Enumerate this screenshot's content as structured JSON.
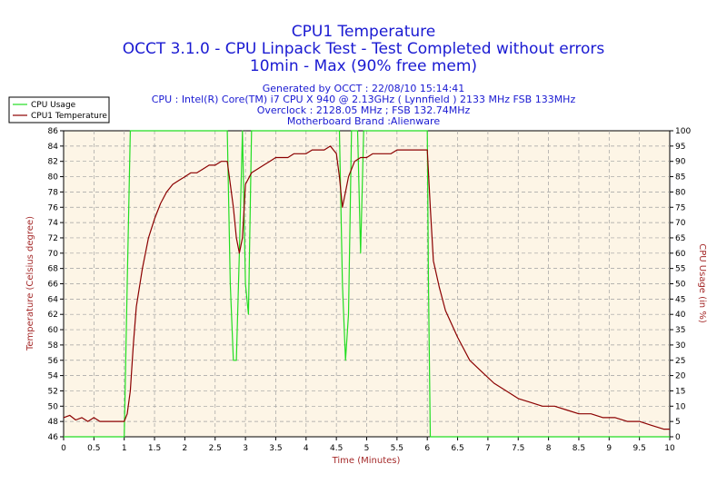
{
  "chart_data": {
    "type": "line",
    "title": "CPU1 Temperature",
    "subtitle_lines": [
      "OCCT 3.1.0 - CPU Linpack Test - Test Completed without errors",
      "10min - Max (90% free mem)"
    ],
    "info_lines": [
      "Generated by OCCT : 22/08/10 15:14:41",
      "CPU : Intel(R) Core(TM) i7 CPU X 940 @ 2.13GHz ( Lynnfield ) 2133 MHz FSB 133MHz",
      "Overclock : 2128.05 MHz ; FSB 132.74MHz",
      "Motherboard Brand :Alienware"
    ],
    "xlabel": "Time (Minutes)",
    "ylabel_left": "Temperature (Celsius degree)",
    "ylabel_right": "CPU Usage (in %)",
    "xlim": [
      0,
      10
    ],
    "ylim_left": [
      46,
      86
    ],
    "ylim_right": [
      0,
      100
    ],
    "x_ticks": [
      "0",
      "0.5",
      "1",
      "1.5",
      "2",
      "2.5",
      "3",
      "3.5",
      "4",
      "4.5",
      "5",
      "5.5",
      "6",
      "6.5",
      "7",
      "7.5",
      "8",
      "8.5",
      "9",
      "9.5",
      "10"
    ],
    "y_ticks_left": [
      "46",
      "48",
      "50",
      "52",
      "54",
      "56",
      "58",
      "60",
      "62",
      "64",
      "66",
      "68",
      "70",
      "72",
      "74",
      "76",
      "78",
      "80",
      "82",
      "84",
      "86"
    ],
    "y_ticks_right": [
      "0",
      "5",
      "10",
      "15",
      "20",
      "25",
      "30",
      "35",
      "40",
      "45",
      "50",
      "55",
      "60",
      "65",
      "70",
      "75",
      "80",
      "85",
      "90",
      "95",
      "100"
    ],
    "grid": true,
    "legend_position": "top-left",
    "colors": {
      "plot_background": "#fdf5e6",
      "grid": "#a0a0a0",
      "cpu_usage": "#22dd22",
      "temperature": "#8b0000",
      "title": "#1a1ad2",
      "axis_label": "#a52a2a"
    },
    "series": [
      {
        "name": "CPU Usage",
        "axis": "right",
        "x": [
          0,
          1.0,
          1.05,
          1.1,
          1.15,
          2.7,
          2.75,
          2.8,
          2.85,
          2.9,
          2.95,
          3.0,
          3.05,
          3.1,
          4.55,
          4.6,
          4.65,
          4.7,
          4.75,
          4.85,
          4.9,
          4.95,
          5.0,
          6.0,
          6.02,
          6.05,
          10
        ],
        "y": [
          0,
          0,
          50,
          100,
          100,
          100,
          50,
          25,
          25,
          60,
          100,
          50,
          40,
          100,
          100,
          50,
          25,
          40,
          100,
          100,
          60,
          100,
          100,
          100,
          50,
          0,
          0
        ]
      },
      {
        "name": "CPU1 Temperature",
        "axis": "left",
        "x": [
          0,
          0.1,
          0.2,
          0.3,
          0.4,
          0.5,
          0.6,
          0.7,
          0.8,
          0.9,
          1.0,
          1.05,
          1.1,
          1.15,
          1.2,
          1.3,
          1.4,
          1.5,
          1.6,
          1.7,
          1.8,
          1.9,
          2.0,
          2.1,
          2.2,
          2.3,
          2.4,
          2.5,
          2.6,
          2.7,
          2.8,
          2.85,
          2.9,
          2.95,
          3.0,
          3.1,
          3.2,
          3.3,
          3.4,
          3.5,
          3.6,
          3.7,
          3.8,
          3.9,
          4.0,
          4.1,
          4.2,
          4.3,
          4.4,
          4.5,
          4.55,
          4.6,
          4.65,
          4.7,
          4.8,
          4.9,
          5.0,
          5.1,
          5.2,
          5.3,
          5.4,
          5.5,
          5.6,
          5.7,
          5.8,
          5.9,
          6.0,
          6.05,
          6.1,
          6.2,
          6.3,
          6.5,
          6.7,
          6.9,
          7.1,
          7.3,
          7.5,
          7.7,
          7.9,
          8.1,
          8.3,
          8.5,
          8.7,
          8.9,
          9.1,
          9.3,
          9.5,
          9.7,
          9.9,
          10.0
        ],
        "y": [
          48.5,
          48.8,
          48.2,
          48.5,
          48.0,
          48.5,
          48.0,
          48.0,
          48.0,
          48.0,
          48.0,
          49.0,
          52.0,
          58.0,
          63.0,
          68.0,
          72.0,
          74.5,
          76.5,
          78.0,
          79.0,
          79.5,
          80.0,
          80.5,
          80.5,
          81.0,
          81.5,
          81.5,
          82.0,
          82.0,
          76.0,
          72.0,
          70.0,
          72.0,
          79.0,
          80.5,
          81.0,
          81.5,
          82.0,
          82.5,
          82.5,
          82.5,
          83.0,
          83.0,
          83.0,
          83.5,
          83.5,
          83.5,
          84.0,
          83.0,
          80.0,
          76.0,
          78.0,
          80.0,
          82.0,
          82.5,
          82.5,
          83.0,
          83.0,
          83.0,
          83.0,
          83.5,
          83.5,
          83.5,
          83.5,
          83.5,
          83.5,
          76.0,
          69.0,
          65.5,
          62.5,
          59.0,
          56.0,
          54.5,
          53.0,
          52.0,
          51.0,
          50.5,
          50.0,
          50.0,
          49.5,
          49.0,
          49.0,
          48.5,
          48.5,
          48.0,
          48.0,
          47.5,
          47.0,
          47.0
        ]
      }
    ]
  }
}
